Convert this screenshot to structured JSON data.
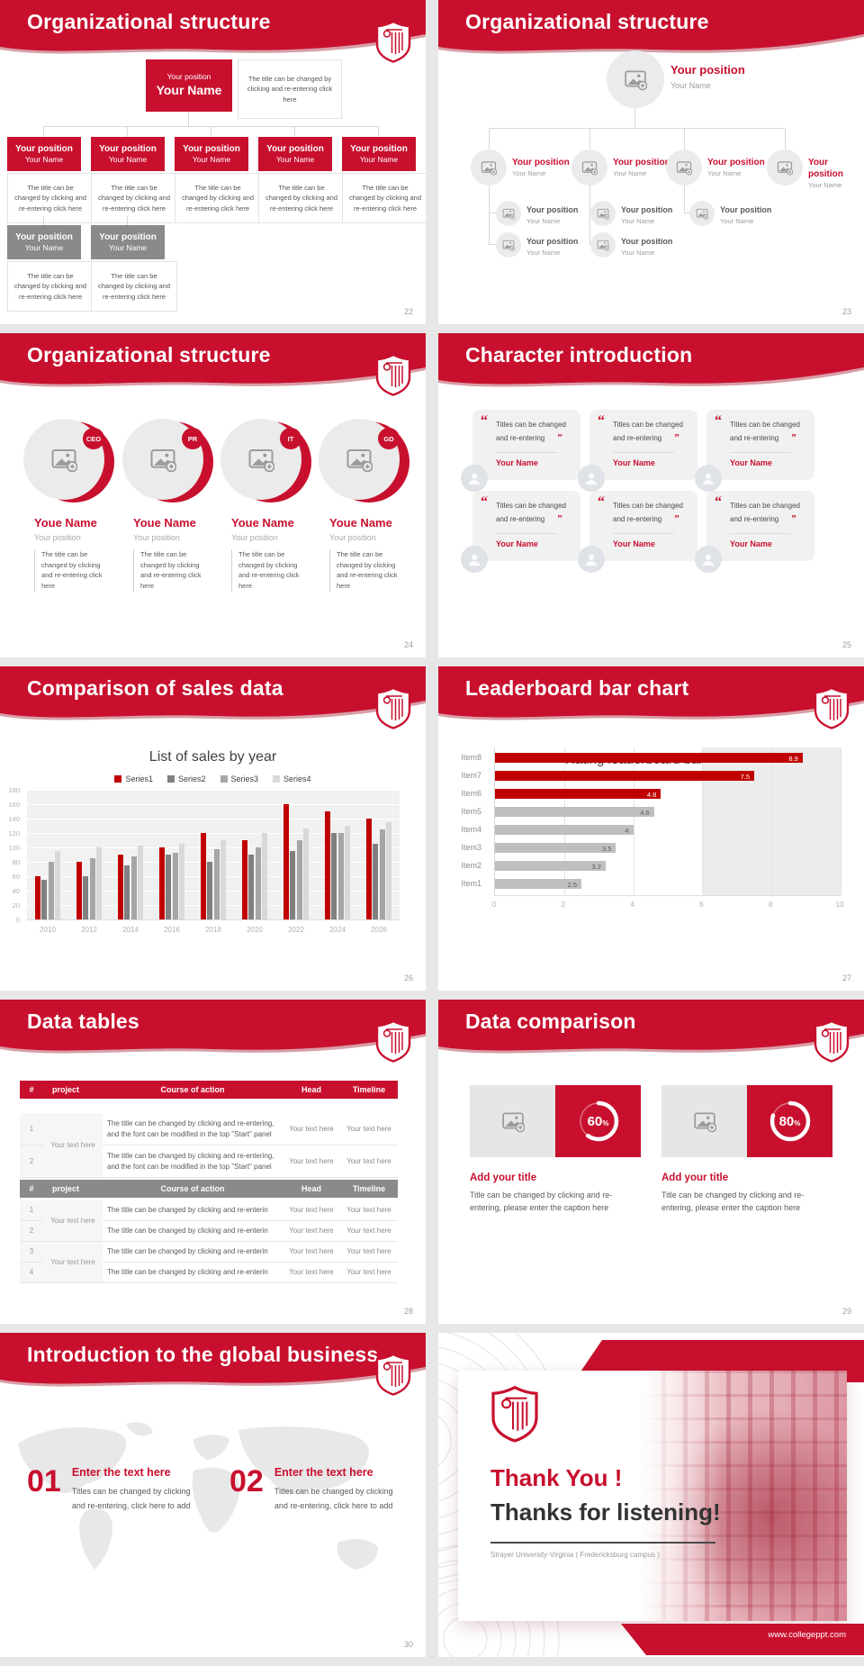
{
  "brand": {
    "red": "#c8102e",
    "red_dark": "#9e0c24",
    "gray_box": "#8a8a8a",
    "chart_red": "#c00000",
    "leader_gray": "#bfbfbf"
  },
  "slides": {
    "org_boxes": {
      "title": "Organizational structure",
      "page": "22",
      "node_position": "Your position",
      "node_name": "Your Name",
      "caption": "The title can be changed by clicking and re-entering click here"
    },
    "org_circles": {
      "title": "Organizational structure",
      "page": "23",
      "node_position": "Your position",
      "node_name": "Your Name"
    },
    "org_people": {
      "title": "Organizational structure",
      "page": "24",
      "badges": [
        "CEO",
        "PR",
        "IT",
        "GD"
      ],
      "person_name": "Youe Name",
      "person_position": "Your position",
      "caption": "The title can be changed by clicking and re-entering click here"
    },
    "characters": {
      "title": "Character introduction",
      "page": "25",
      "quote_open": "“",
      "quote_close": "”",
      "quote": "Titles can be changed and re-entering",
      "person_name": "Your Name"
    },
    "sales": {
      "title": "Comparison of sales data",
      "page": "26",
      "chart_data": {
        "type": "bar",
        "title": "List of sales by year",
        "categories": [
          "2010",
          "2012",
          "2014",
          "2016",
          "2018",
          "2020",
          "2022",
          "2024",
          "2026"
        ],
        "series": [
          {
            "name": "Series1",
            "color": "#c00000",
            "values": [
              60,
              80,
              90,
              100,
              120,
              110,
              160,
              150,
              140
            ]
          },
          {
            "name": "Series2",
            "color": "#808080",
            "values": [
              55,
              60,
              75,
              90,
              80,
              90,
              95,
              120,
              105
            ]
          },
          {
            "name": "Series3",
            "color": "#a6a6a6",
            "values": [
              80,
              85,
              88,
              92,
              98,
              100,
              110,
              120,
              125
            ]
          },
          {
            "name": "Series4",
            "color": "#d9d9d9",
            "values": [
              95,
              100,
              102,
              105,
              110,
              120,
              126,
              130,
              135
            ]
          }
        ],
        "ylim": [
          0,
          180
        ],
        "ytick_step": 20,
        "legend_position": "top",
        "grid": true
      }
    },
    "leaderboard": {
      "title": "Leaderboard bar chart",
      "page": "27",
      "chart_data": {
        "type": "bar-horizontal",
        "title": "Rating leaderboard bar chart",
        "categories": [
          "Item8",
          "Item7",
          "Item6",
          "Item5",
          "Item4",
          "Item3",
          "Item2",
          "Item1"
        ],
        "values": [
          8.9,
          7.5,
          4.8,
          4.6,
          4,
          3.5,
          3.2,
          2.5
        ],
        "bar_colors": [
          "#c00000",
          "#c00000",
          "#c00000",
          "#bfbfbf",
          "#bfbfbf",
          "#bfbfbf",
          "#bfbfbf",
          "#bfbfbf"
        ],
        "xlim": [
          0,
          10
        ],
        "xticks": [
          0,
          2,
          4,
          6,
          8,
          10
        ],
        "grid": true
      }
    },
    "tables": {
      "title": "Data tables",
      "page": "28",
      "columns": [
        "#",
        "project",
        "Course of action",
        "Head",
        "Timeline"
      ],
      "project_cell": "Your text here",
      "text_cell": "Your text here",
      "long_text": "The title can be changed by clicking and re-entering, and the font can be modified in the top \"Start\" panel",
      "short_text": "The title can be changed by clicking and re-enterin",
      "table1_rows": [
        "1",
        "2"
      ],
      "table2_rows": [
        "1",
        "2",
        "3",
        "4"
      ]
    },
    "comparison": {
      "title": "Data comparison",
      "page": "29",
      "cards": [
        {
          "percent": "60",
          "unit": "%"
        },
        {
          "percent": "80",
          "unit": "%"
        }
      ],
      "card_title": "Add your title",
      "card_caption": "Title can be changed by clicking and re-entering, please enter the caption here"
    },
    "global": {
      "title": "Introduction to the global business",
      "page": "30",
      "items": [
        {
          "num": "01",
          "title": "Enter the text here",
          "caption": "Titles can be changed by clicking and re-entering, click here to add"
        },
        {
          "num": "02",
          "title": "Enter the text here",
          "caption": "Titles can be changed by clicking and re-entering, click here to add"
        }
      ]
    },
    "thanks": {
      "headline": "Thank You !",
      "subline": "Thanks for listening!",
      "organization": "Strayer University-Virginia ( Fredericksburg campus )",
      "url": "www.collegeppt.com"
    }
  }
}
